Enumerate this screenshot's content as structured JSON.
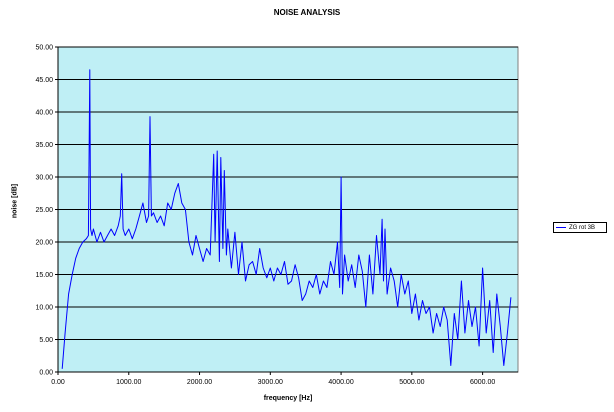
{
  "chart_data": {
    "type": "line",
    "title": "NOISE ANALYSIS",
    "xlabel": "frequency [Hz]",
    "ylabel": "noise [dB]",
    "xlim": [
      0,
      6500
    ],
    "ylim": [
      0,
      50
    ],
    "x_ticks": [
      0,
      1000,
      2000,
      3000,
      4000,
      5000,
      6000
    ],
    "x_tick_labels": [
      "0.00",
      "1000.00",
      "2000.00",
      "3000.00",
      "4000.00",
      "5000.00",
      "6000.00"
    ],
    "y_ticks": [
      0,
      5,
      10,
      15,
      20,
      25,
      30,
      35,
      40,
      45,
      50
    ],
    "y_tick_labels": [
      "0.00",
      "5.00",
      "10.00",
      "15.00",
      "20.00",
      "25.00",
      "30.00",
      "35.00",
      "40.00",
      "45.00",
      "50.00"
    ],
    "grid": "horizontal",
    "legend": "right",
    "plot_background": "#bfeff5",
    "series": [
      {
        "name": "ZG rot 3B",
        "color": "#0000ff",
        "x": [
          60,
          100,
          150,
          200,
          250,
          300,
          350,
          400,
          430,
          450,
          460,
          480,
          500,
          550,
          600,
          650,
          700,
          750,
          800,
          850,
          880,
          900,
          920,
          950,
          1000,
          1050,
          1100,
          1150,
          1200,
          1250,
          1280,
          1300,
          1320,
          1350,
          1400,
          1450,
          1500,
          1550,
          1600,
          1650,
          1700,
          1750,
          1800,
          1850,
          1900,
          1950,
          2000,
          2050,
          2100,
          2150,
          2200,
          2220,
          2250,
          2280,
          2300,
          2330,
          2350,
          2380,
          2400,
          2450,
          2500,
          2550,
          2600,
          2650,
          2700,
          2750,
          2800,
          2850,
          2900,
          2950,
          3000,
          3050,
          3100,
          3150,
          3200,
          3250,
          3300,
          3350,
          3400,
          3450,
          3500,
          3550,
          3600,
          3650,
          3700,
          3750,
          3800,
          3850,
          3900,
          3950,
          3980,
          4000,
          4020,
          4050,
          4100,
          4150,
          4200,
          4250,
          4300,
          4350,
          4400,
          4450,
          4500,
          4550,
          4580,
          4600,
          4620,
          4650,
          4700,
          4750,
          4800,
          4850,
          4900,
          4950,
          5000,
          5050,
          5100,
          5150,
          5200,
          5250,
          5300,
          5350,
          5400,
          5450,
          5500,
          5550,
          5600,
          5650,
          5700,
          5750,
          5800,
          5850,
          5900,
          5950,
          6000,
          6050,
          6100,
          6150,
          6200,
          6250,
          6300,
          6350,
          6400
        ],
        "y": [
          0.5,
          6,
          12,
          15,
          17.5,
          19,
          20,
          20.5,
          21,
          46.5,
          22,
          21,
          22,
          20,
          21.5,
          20,
          21,
          22,
          21,
          22.5,
          24,
          30.5,
          22,
          21,
          22,
          20.5,
          22,
          24,
          26,
          23,
          24,
          39.3,
          24,
          24.5,
          23,
          24,
          22.5,
          26,
          25,
          27.5,
          29,
          26,
          25,
          20,
          18,
          21,
          19,
          17,
          19,
          18,
          33.5,
          20,
          34,
          17,
          33,
          19,
          31,
          18,
          22,
          16,
          21.5,
          15,
          20,
          14,
          16.5,
          17,
          15,
          19,
          16,
          14.5,
          16,
          14,
          16,
          15,
          17,
          13.5,
          14,
          16.5,
          14.5,
          11,
          12,
          14,
          13,
          15,
          12,
          14,
          13,
          17,
          15,
          20,
          13,
          30,
          12,
          18,
          14,
          16.5,
          13,
          18,
          15.5,
          10,
          18,
          12,
          21,
          15,
          23.5,
          14,
          22,
          12,
          16,
          14,
          10,
          15,
          12,
          14,
          9,
          12,
          8,
          11,
          9,
          10,
          6,
          9,
          7,
          10,
          8,
          1,
          9,
          5,
          14,
          6,
          11,
          7,
          10,
          4,
          16,
          6,
          11,
          3,
          12,
          7,
          1,
          6,
          11.5
        ]
      }
    ]
  }
}
